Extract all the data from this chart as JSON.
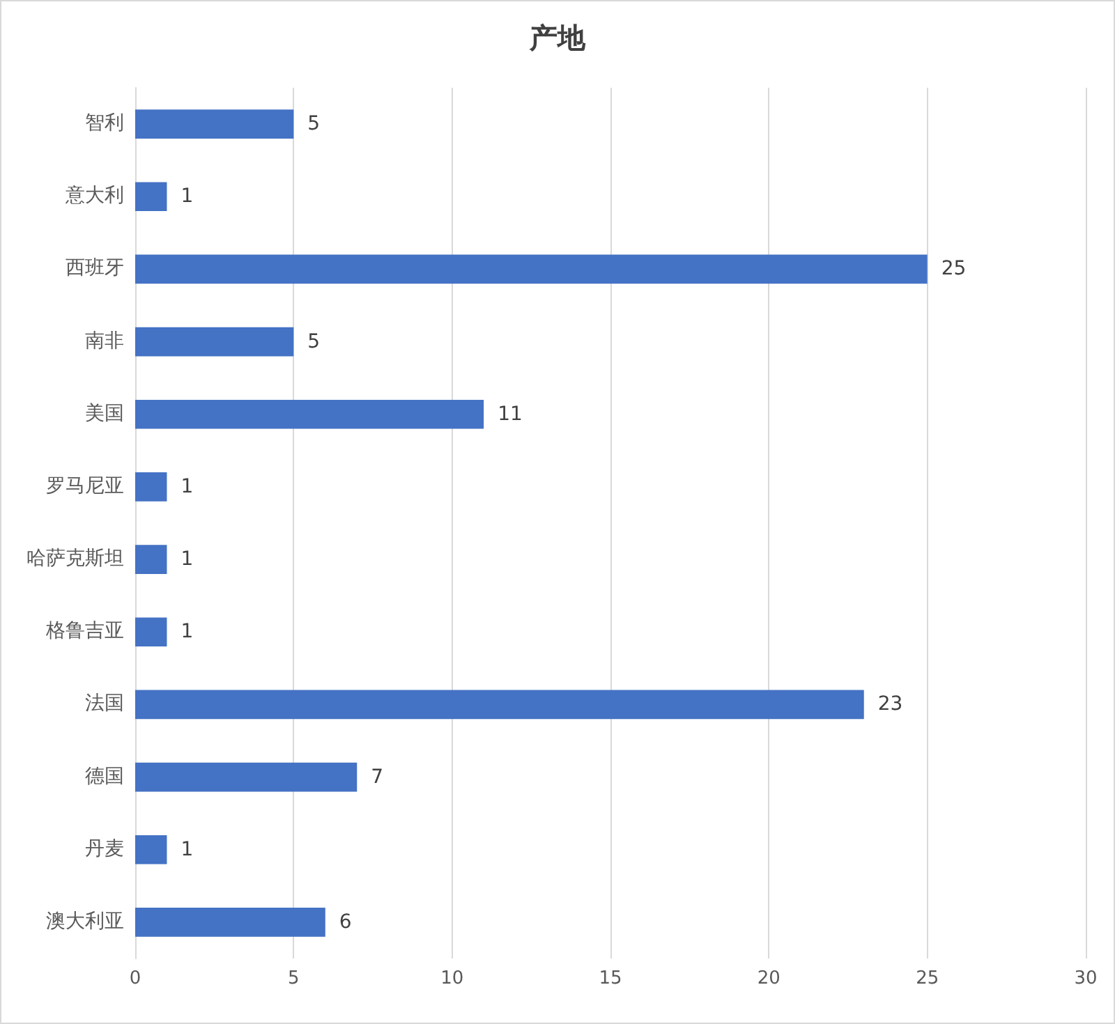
{
  "chart_data": {
    "type": "bar",
    "orientation": "horizontal",
    "title": "产地",
    "categories": [
      "智利",
      "意大利",
      "西班牙",
      "南非",
      "美国",
      "罗马尼亚",
      "哈萨克斯坦",
      "格鲁吉亚",
      "法国",
      "德国",
      "丹麦",
      "澳大利亚"
    ],
    "values": [
      5,
      1,
      25,
      5,
      11,
      1,
      1,
      1,
      23,
      7,
      1,
      6
    ],
    "color": "#4472c4",
    "xlim": [
      0,
      30
    ],
    "xticks": [
      0,
      5,
      10,
      15,
      20,
      25,
      30
    ],
    "grid": "x",
    "data_labels": true
  }
}
